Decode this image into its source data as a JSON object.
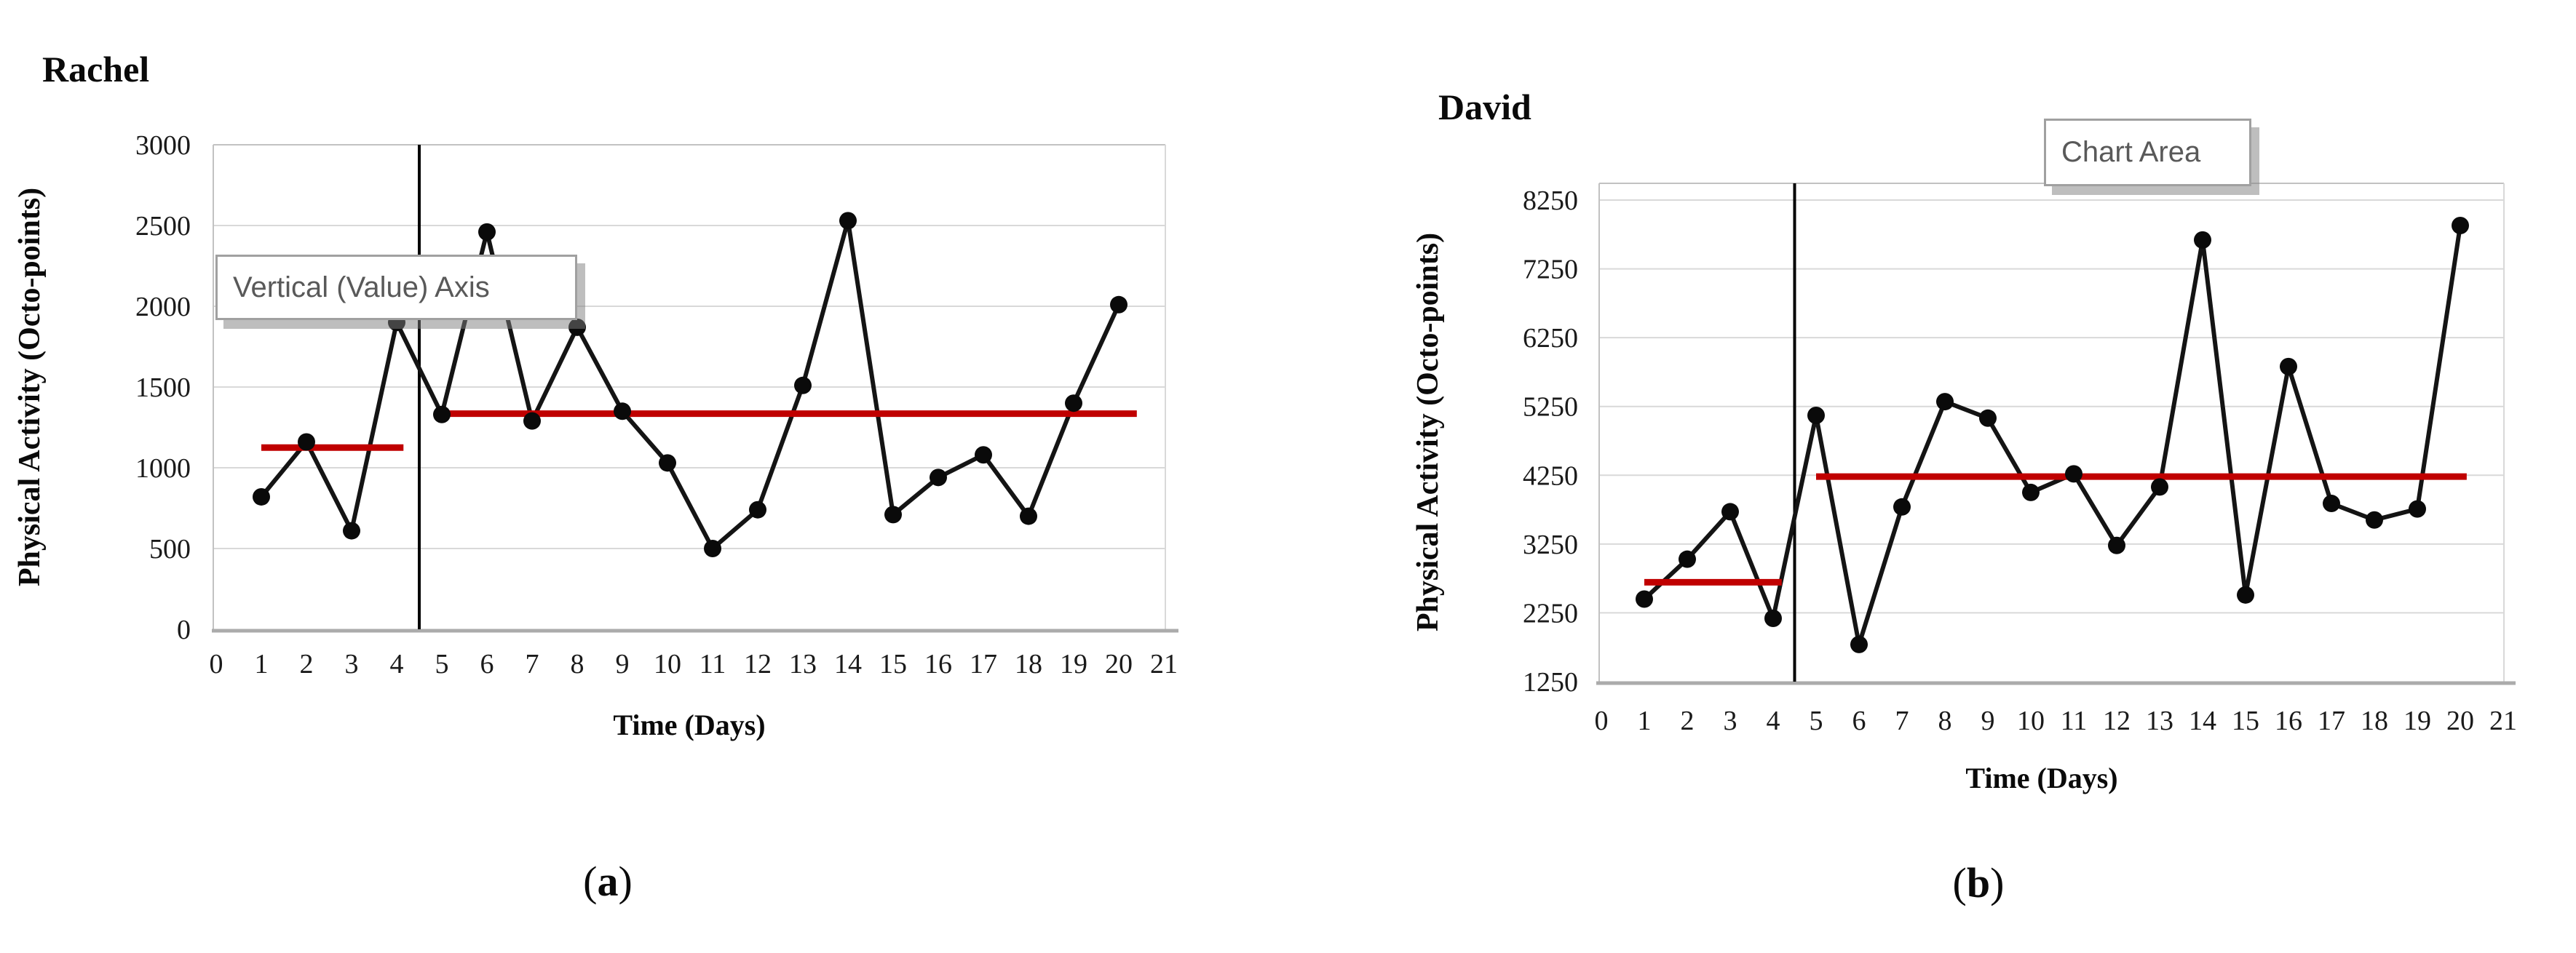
{
  "figure": {
    "captions": [
      {
        "open": "(",
        "letter": "a",
        "close": ")"
      },
      {
        "open": "(",
        "letter": "b",
        "close": ")"
      }
    ]
  },
  "chart_data": [
    {
      "id": "rachel",
      "type": "line",
      "title": "Rachel",
      "xlabel": "Time (Days)",
      "ylabel": "Physical Activity (Octo-points)",
      "tooltip_label": "Vertical (Value) Axis",
      "x": [
        1,
        2,
        3,
        4,
        5,
        6,
        7,
        8,
        9,
        10,
        11,
        12,
        13,
        14,
        15,
        16,
        17,
        18,
        19,
        20
      ],
      "values": [
        820,
        1160,
        610,
        1900,
        1330,
        2460,
        1290,
        1870,
        1350,
        1030,
        500,
        740,
        1510,
        2530,
        710,
        940,
        1080,
        700,
        1400,
        2010
      ],
      "x_tick_labels": [
        "0",
        "1",
        "2",
        "3",
        "4",
        "5",
        "6",
        "7",
        "8",
        "9",
        "10",
        "11",
        "12",
        "13",
        "14",
        "15",
        "16",
        "17",
        "18",
        "19",
        "20",
        "21"
      ],
      "y_ticks": [
        0,
        500,
        1000,
        1500,
        2000,
        2500,
        3000
      ],
      "xlim": [
        0,
        21
      ],
      "ylim": [
        0,
        3000
      ],
      "grid": true,
      "legend": "none",
      "line_color": "#141414",
      "marker_color": "#0a0a0a",
      "mean_line_color": "#c00000",
      "phase_divider_x": 4.5,
      "mean_lines": [
        {
          "value": 1125,
          "x_start": 1.0,
          "x_end": 4.15
        },
        {
          "value": 1335,
          "x_start": 4.95,
          "x_end": 20.4
        }
      ]
    },
    {
      "id": "david",
      "type": "line",
      "title": "David",
      "xlabel": "Time (Days)",
      "ylabel": "Physical Activity (Octo-points)",
      "tooltip_label": "Chart Area",
      "x": [
        1,
        2,
        3,
        4,
        5,
        6,
        7,
        8,
        9,
        10,
        11,
        12,
        13,
        14,
        15,
        16,
        17,
        18,
        19,
        20
      ],
      "values": [
        2450,
        3030,
        3720,
        2170,
        5120,
        1790,
        3790,
        5320,
        5080,
        4000,
        4270,
        3230,
        4080,
        7670,
        2510,
        5830,
        3840,
        3600,
        3760,
        7880
      ],
      "x_tick_labels": [
        "0",
        "1",
        "2",
        "3",
        "4",
        "5",
        "6",
        "7",
        "8",
        "9",
        "10",
        "11",
        "12",
        "13",
        "14",
        "15",
        "16",
        "17",
        "18",
        "19",
        "20",
        "21"
      ],
      "y_ticks": [
        1250,
        2250,
        3250,
        4250,
        5250,
        6250,
        7250,
        8250
      ],
      "xlim": [
        0,
        21
      ],
      "ylim": [
        1250,
        8250
      ],
      "grid": true,
      "legend": "none",
      "line_color": "#141414",
      "marker_color": "#0a0a0a",
      "mean_line_color": "#c00000",
      "phase_divider_x": 4.5,
      "mean_lines": [
        {
          "value": 2695,
          "x_start": 1.0,
          "x_end": 4.2
        },
        {
          "value": 4230,
          "x_start": 5.0,
          "x_end": 20.15
        }
      ]
    }
  ]
}
